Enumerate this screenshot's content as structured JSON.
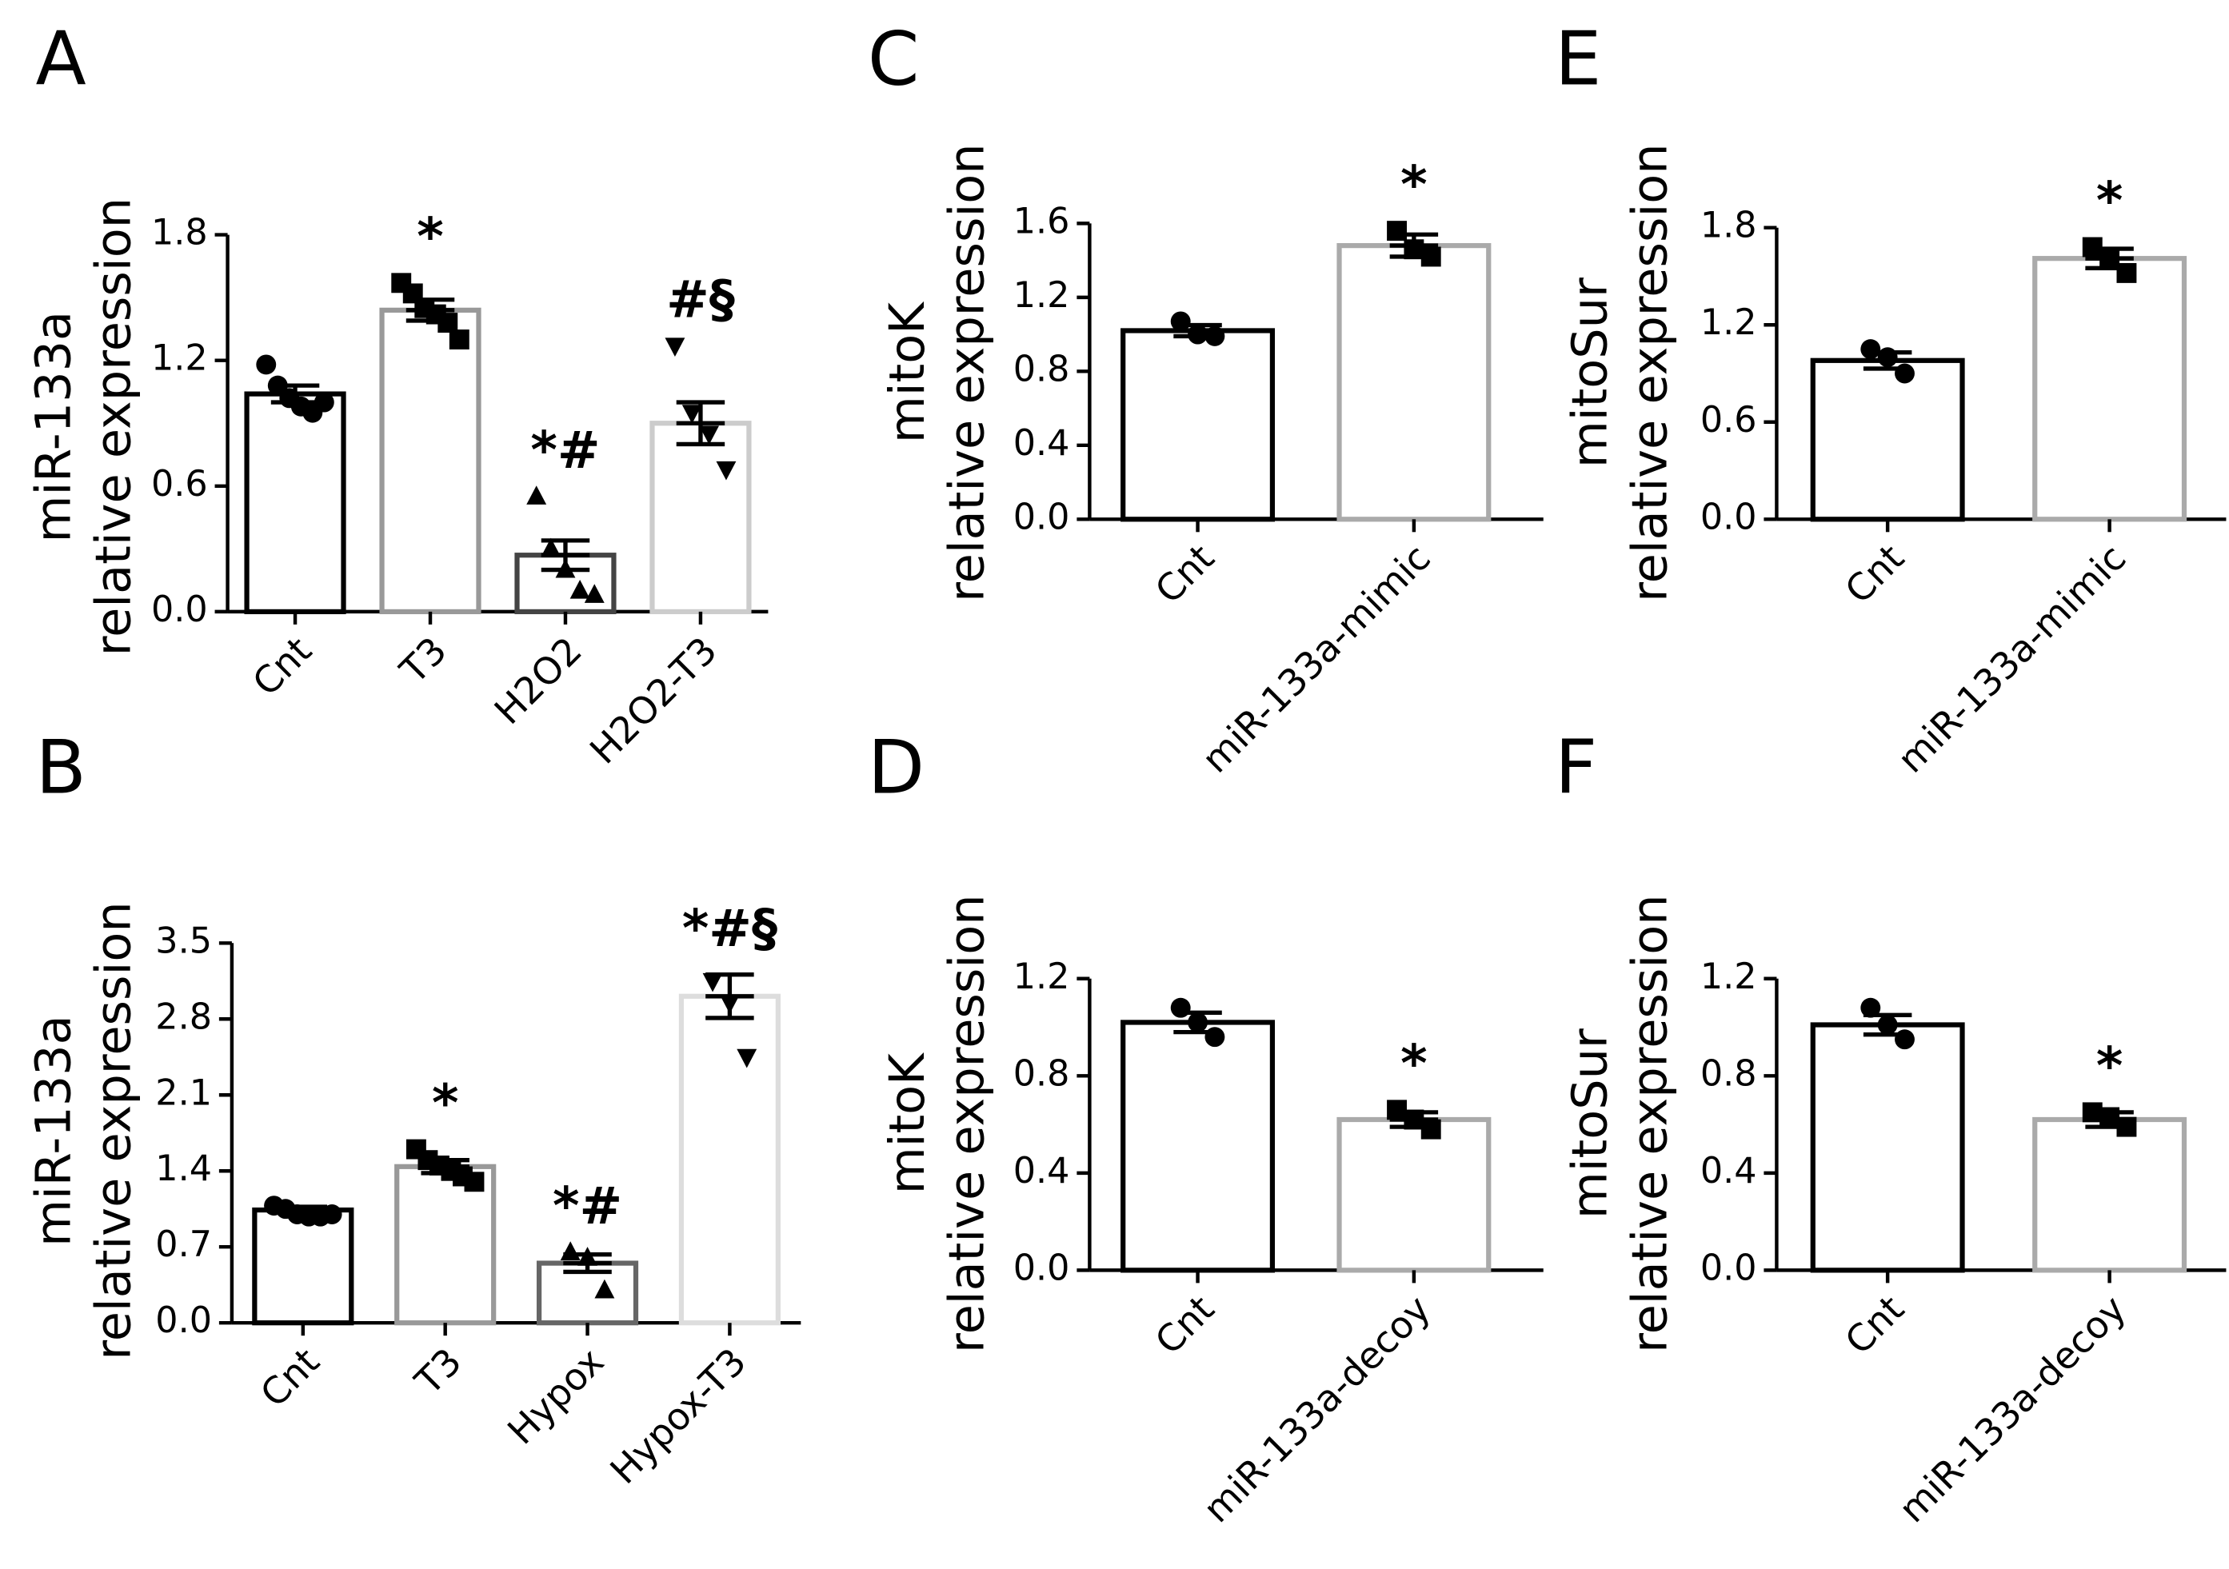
{
  "chart_data": [
    {
      "type": "bar",
      "panel": "A",
      "ylabel": [
        "miR-133a",
        "relative expression"
      ],
      "categories": [
        "Cnt",
        "T3",
        "H2O2",
        "H2O2-T3"
      ],
      "values": [
        1.04,
        1.44,
        0.27,
        0.9
      ],
      "errors": [
        0.04,
        0.05,
        0.07,
        0.1
      ],
      "points": [
        [
          1.18,
          1.08,
          1.02,
          0.98,
          0.95,
          1.0
        ],
        [
          1.57,
          1.52,
          1.45,
          1.42,
          1.38,
          1.3
        ],
        [
          0.55,
          0.3,
          0.2,
          0.1,
          0.08
        ],
        [
          1.27,
          0.95,
          0.85,
          0.68
        ]
      ],
      "markers": [
        "circle",
        "square",
        "triangle-up",
        "triangle-down"
      ],
      "colors": [
        "#000000",
        "#999999",
        "#444444",
        "#cccccc"
      ],
      "annotations": [
        "",
        "*",
        "*#",
        "#§"
      ],
      "ylim": [
        0,
        1.8
      ],
      "yticks": [
        {
          "value": 0,
          "label": "0.0"
        },
        0.6,
        1.2,
        1.8
      ]
    },
    {
      "type": "bar",
      "panel": "B",
      "ylabel": [
        "miR-133a",
        "relative expression"
      ],
      "categories": [
        "Cnt",
        "T3",
        "Hypox",
        "Hypox-T3"
      ],
      "values": [
        1.04,
        1.44,
        0.55,
        3.01
      ],
      "errors": [
        0.03,
        0.06,
        0.08,
        0.2
      ],
      "points": [
        [
          1.08,
          1.05,
          1.0,
          0.98,
          0.98,
          1.0
        ],
        [
          1.6,
          1.5,
          1.45,
          1.4,
          1.35,
          1.3
        ],
        [
          0.65,
          0.6,
          0.3
        ],
        [
          3.15,
          2.95,
          2.45
        ]
      ],
      "markers": [
        "circle",
        "square",
        "triangle-up",
        "triangle-down"
      ],
      "colors": [
        "#000000",
        "#999999",
        "#666666",
        "#dddddd"
      ],
      "annotations": [
        "",
        "*",
        "*#",
        "*#§"
      ],
      "ylim": [
        0,
        3.5
      ],
      "yticks": [
        {
          "value": 0,
          "label": "0.0"
        },
        0.7,
        1.4,
        2.1,
        2.8,
        3.5
      ]
    },
    {
      "type": "bar",
      "panel": "C",
      "ylabel": [
        "mitoK",
        "relative expression"
      ],
      "categories": [
        "Cnt",
        "miR-133a-mimic"
      ],
      "values": [
        1.02,
        1.48
      ],
      "errors": [
        0.03,
        0.06
      ],
      "points": [
        [
          1.07,
          1.0,
          0.99
        ],
        [
          1.56,
          1.46,
          1.42
        ]
      ],
      "markers": [
        "circle",
        "square"
      ],
      "colors": [
        "#000000",
        "#aaaaaa"
      ],
      "annotations": [
        "",
        "*"
      ],
      "ylim": [
        0,
        1.6
      ],
      "yticks": [
        {
          "value": 0,
          "label": "0.0"
        },
        0.4,
        0.8,
        1.2,
        1.6
      ]
    },
    {
      "type": "bar",
      "panel": "D",
      "ylabel": [
        "mitoK",
        "relative expression"
      ],
      "categories": [
        "Cnt",
        "miR-133a-decoy"
      ],
      "values": [
        1.02,
        0.62
      ],
      "errors": [
        0.04,
        0.03
      ],
      "points": [
        [
          1.08,
          1.02,
          0.96
        ],
        [
          0.66,
          0.62,
          0.58
        ]
      ],
      "markers": [
        "circle",
        "square"
      ],
      "colors": [
        "#000000",
        "#aaaaaa"
      ],
      "annotations": [
        "",
        "*"
      ],
      "ylim": [
        0,
        1.2
      ],
      "yticks": [
        {
          "value": 0,
          "label": "0.0"
        },
        0.4,
        0.8,
        1.2
      ]
    },
    {
      "type": "bar",
      "panel": "E",
      "ylabel": [
        "mitoSur",
        "relative expression"
      ],
      "categories": [
        "Cnt",
        "miR-133a-mimic"
      ],
      "values": [
        0.98,
        1.61
      ],
      "errors": [
        0.05,
        0.06
      ],
      "points": [
        [
          1.05,
          1.0,
          0.9
        ],
        [
          1.68,
          1.6,
          1.52
        ]
      ],
      "markers": [
        "circle",
        "square"
      ],
      "colors": [
        "#000000",
        "#aaaaaa"
      ],
      "annotations": [
        "",
        "*"
      ],
      "ylim": [
        0,
        1.8
      ],
      "yticks": [
        {
          "value": 0,
          "label": "0.0"
        },
        0.6,
        1.2,
        1.8
      ]
    },
    {
      "type": "bar",
      "panel": "F",
      "ylabel": [
        "mitoSur",
        "relative expression"
      ],
      "categories": [
        "Cnt",
        "miR-133a-decoy"
      ],
      "values": [
        1.01,
        0.62
      ],
      "errors": [
        0.04,
        0.03
      ],
      "points": [
        [
          1.08,
          1.01,
          0.95
        ],
        [
          0.65,
          0.63,
          0.59
        ]
      ],
      "markers": [
        "circle",
        "square"
      ],
      "colors": [
        "#000000",
        "#aaaaaa"
      ],
      "annotations": [
        "",
        "*"
      ],
      "ylim": [
        0,
        1.2
      ],
      "yticks": [
        {
          "value": 0,
          "label": "0.0"
        },
        0.4,
        0.8,
        1.2
      ]
    }
  ]
}
